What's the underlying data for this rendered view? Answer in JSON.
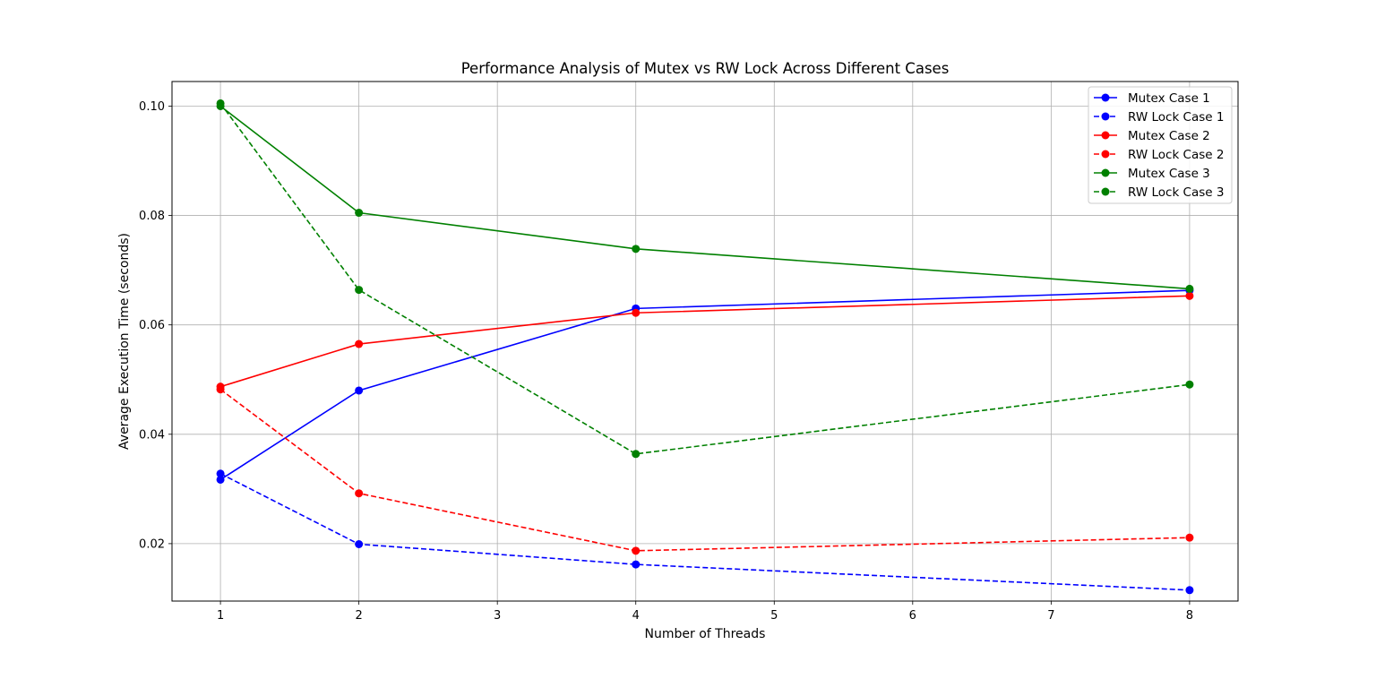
{
  "chart_data": {
    "type": "line",
    "title": "Performance Analysis of Mutex vs RW Lock Across Different Cases",
    "xlabel": "Number of Threads",
    "ylabel": "Average Execution Time (seconds)",
    "x": [
      1,
      2,
      4,
      8
    ],
    "xlim": [
      0.65,
      8.35
    ],
    "ylim": [
      0.0095,
      0.1045
    ],
    "xticks": [
      1,
      2,
      3,
      4,
      5,
      6,
      7,
      8
    ],
    "xtick_labels": [
      "1",
      "2",
      "3",
      "4",
      "5",
      "6",
      "7",
      "8"
    ],
    "yticks": [
      0.02,
      0.04,
      0.06,
      0.08,
      0.1
    ],
    "ytick_labels": [
      "0.02",
      "0.04",
      "0.06",
      "0.08",
      "0.10"
    ],
    "grid": true,
    "legend_position": "top-right",
    "series": [
      {
        "name": "Mutex Case 1",
        "color": "#0000ff",
        "dashed": false,
        "values": [
          0.0317,
          0.048,
          0.063,
          0.0663
        ]
      },
      {
        "name": "RW Lock Case 1",
        "color": "#0000ff",
        "dashed": true,
        "values": [
          0.0328,
          0.0199,
          0.0162,
          0.0115
        ]
      },
      {
        "name": "Mutex Case 2",
        "color": "#ff0000",
        "dashed": false,
        "values": [
          0.0487,
          0.0565,
          0.0622,
          0.0653
        ]
      },
      {
        "name": "RW Lock Case 2",
        "color": "#ff0000",
        "dashed": true,
        "values": [
          0.0482,
          0.0292,
          0.0187,
          0.0211
        ]
      },
      {
        "name": "Mutex Case 3",
        "color": "#008000",
        "dashed": false,
        "values": [
          0.1,
          0.0805,
          0.0739,
          0.0666
        ]
      },
      {
        "name": "RW Lock Case 3",
        "color": "#008000",
        "dashed": true,
        "values": [
          0.1005,
          0.0664,
          0.0364,
          0.0491
        ]
      }
    ]
  }
}
